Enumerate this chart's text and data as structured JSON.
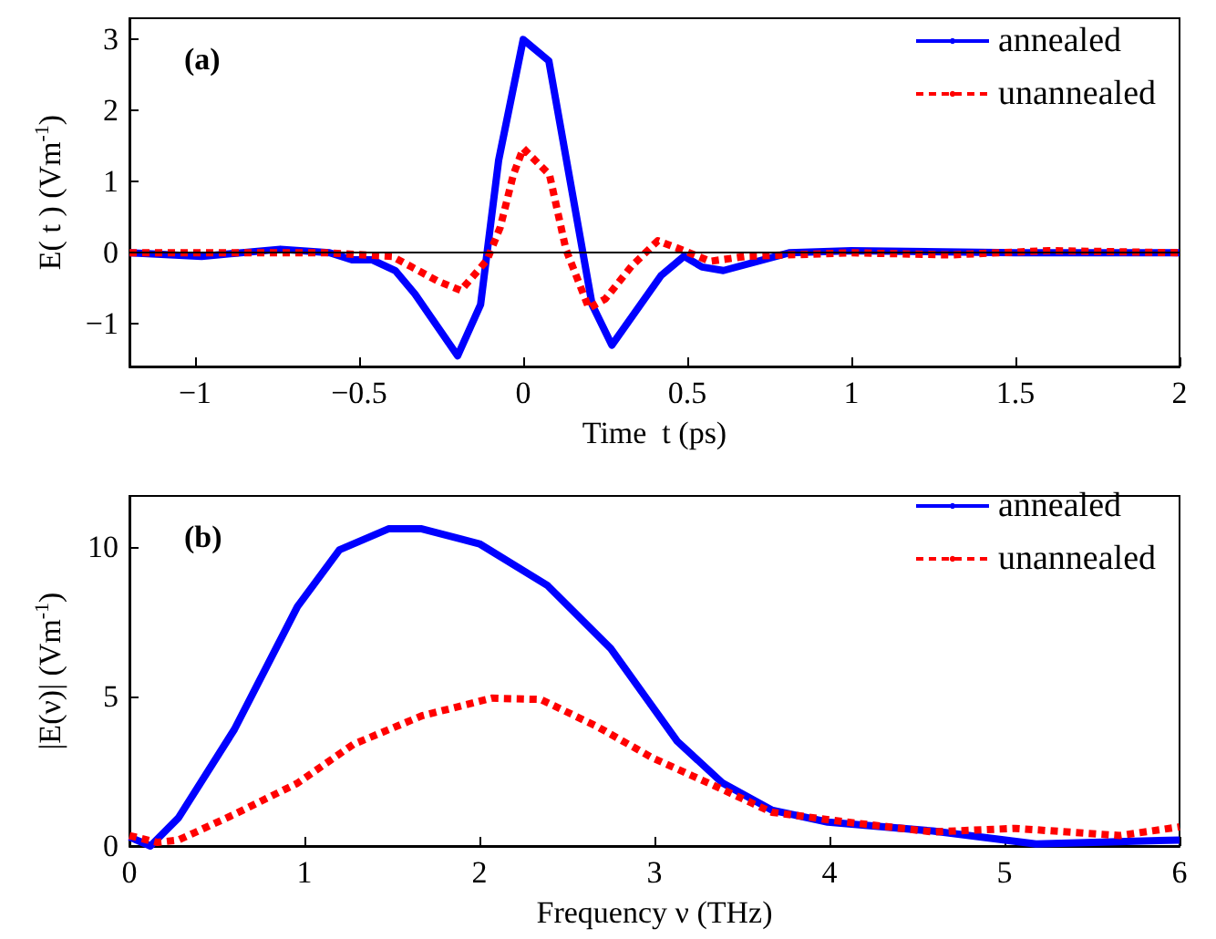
{
  "chart_data": [
    {
      "type": "line",
      "xlabel": "Time  t (ps)",
      "ylabel": "E( t ) (Vm$^{-1}$)",
      "annotations": [
        "(a)"
      ],
      "xlim": [
        -1.2,
        2
      ],
      "ylim": [
        -1.6,
        3.3
      ],
      "xticks": [
        -1,
        -0.5,
        0,
        0.5,
        1,
        1.5,
        2
      ],
      "yticks": [
        -1,
        0,
        1,
        2,
        3
      ],
      "grid": false,
      "legend": "top right",
      "marker": "none",
      "ref_lines": [
        {
          "axis": "y",
          "value": 0,
          "color": "#000000",
          "line_style": "solid"
        }
      ],
      "series": [
        {
          "name": "annealed",
          "color": "#0000ff",
          "line_style": "solid",
          "x": [
            -1.2,
            -0.98,
            -0.74,
            -0.59,
            -0.52,
            -0.46,
            -0.39,
            -0.33,
            -0.2,
            -0.13,
            -0.075,
            0.0,
            0.078,
            0.21,
            0.27,
            0.42,
            0.49,
            0.545,
            0.61,
            0.81,
            1.0,
            1.5,
            2.0
          ],
          "values": [
            0,
            -0.05,
            0.05,
            0,
            -0.1,
            -0.1,
            -0.25,
            -0.58,
            -1.45,
            -0.73,
            1.3,
            3.0,
            2.7,
            -0.73,
            -1.3,
            -0.32,
            -0.05,
            -0.2,
            -0.25,
            0,
            0.03,
            0,
            0
          ]
        },
        {
          "name": "unannealed",
          "color": "#ff0000",
          "line_style": "dashed",
          "x": [
            -1.2,
            -0.9,
            -0.6,
            -0.4,
            -0.34,
            -0.26,
            -0.19,
            -0.11,
            -0.07,
            -0.03,
            0.0,
            0.08,
            0.13,
            0.2,
            0.25,
            0.33,
            0.41,
            0.49,
            0.57,
            0.68,
            1.0,
            1.3,
            1.45,
            1.6,
            2.0
          ],
          "values": [
            0,
            0,
            0,
            -0.05,
            -0.2,
            -0.4,
            -0.53,
            -0.1,
            0.36,
            1.1,
            1.47,
            1.1,
            0.05,
            -0.78,
            -0.65,
            -0.19,
            0.17,
            0.03,
            -0.12,
            -0.05,
            0,
            -0.03,
            0,
            0.03,
            0
          ]
        }
      ]
    },
    {
      "type": "line",
      "xlabel": "Frequency ν (THz)",
      "ylabel": "|E(ν)| (Vm$^{-1}$)",
      "annotations": [
        "(b)"
      ],
      "xlim": [
        0,
        6
      ],
      "ylim": [
        0,
        11.7
      ],
      "xticks": [
        0,
        1,
        2,
        3,
        4,
        5,
        6
      ],
      "yticks": [
        0,
        5,
        10
      ],
      "grid": false,
      "legend": "top right",
      "marker": "none",
      "series": [
        {
          "name": "annealed",
          "color": "#0000ff",
          "line_style": "solid",
          "x": [
            0,
            0.12,
            0.28,
            0.6,
            0.96,
            1.2,
            1.48,
            1.67,
            2.0,
            2.39,
            2.75,
            3.13,
            3.39,
            3.67,
            3.99,
            4.59,
            5.18,
            6
          ],
          "values": [
            0.3,
            0,
            0.94,
            3.9,
            8.0,
            9.9,
            10.6,
            10.6,
            10.1,
            8.7,
            6.6,
            3.5,
            2.1,
            1.2,
            0.8,
            0.5,
            0.07,
            0.2
          ]
        },
        {
          "name": "unannealed",
          "color": "#ff0000",
          "line_style": "dashed",
          "x": [
            0,
            0.16,
            0.28,
            0.6,
            0.96,
            1.28,
            1.67,
            2.07,
            2.35,
            2.67,
            2.99,
            3.31,
            3.67,
            4.07,
            4.59,
            5.06,
            5.66,
            6
          ],
          "values": [
            0.35,
            0.12,
            0.2,
            1.06,
            2.1,
            3.4,
            4.35,
            4.94,
            4.9,
            4.0,
            2.94,
            2.1,
            1.13,
            0.82,
            0.47,
            0.59,
            0.35,
            0.64
          ]
        }
      ]
    }
  ]
}
